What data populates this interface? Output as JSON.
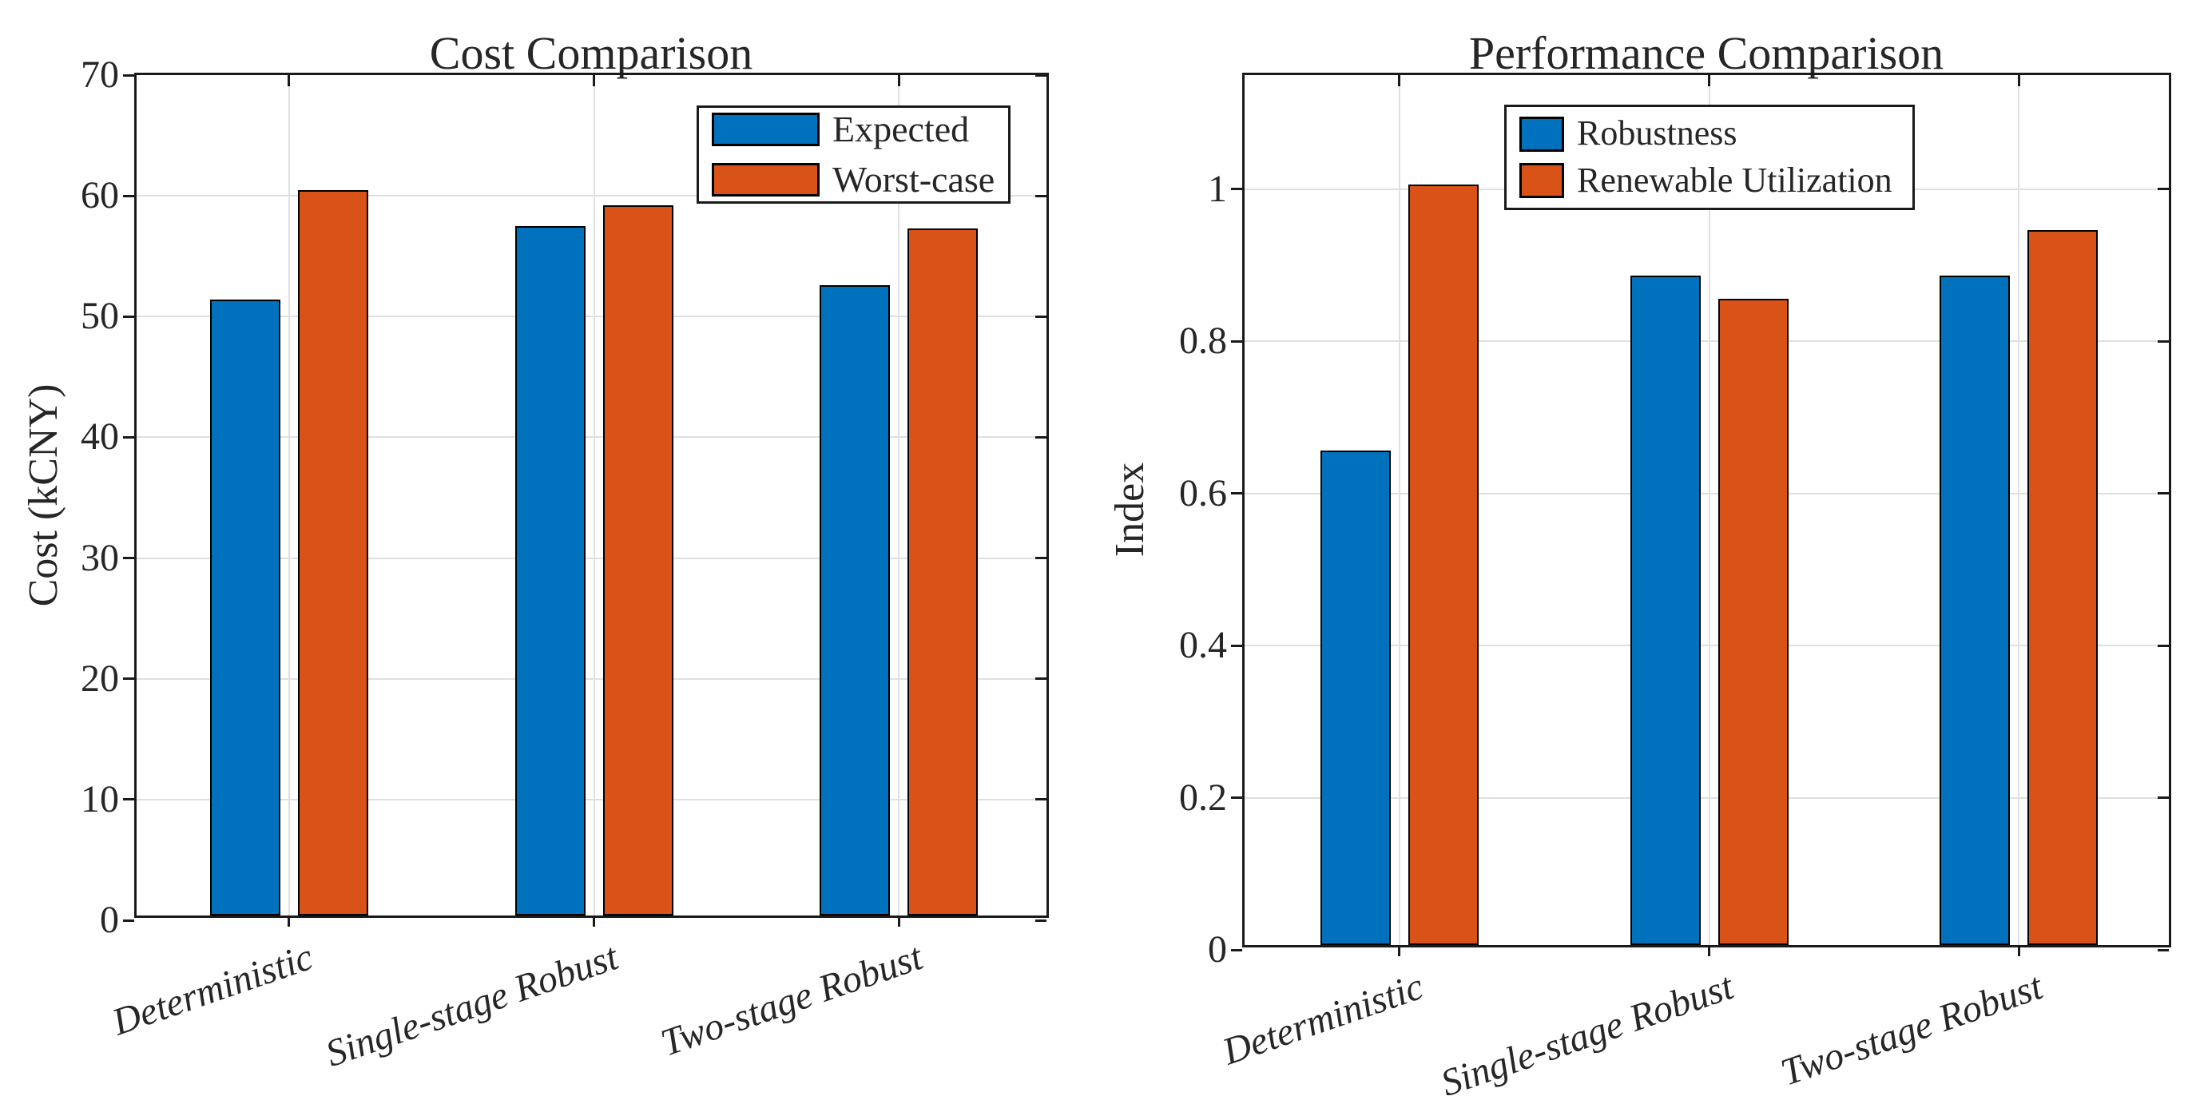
{
  "figure": {
    "background": "#ffffff",
    "axis_color": "#1a1a1a",
    "grid_color": "#e0e0e0",
    "text_color": "#262626",
    "bar_edge_color": "#000000",
    "series_blue": "#0072BD",
    "series_orange": "#D95319"
  },
  "chart_data": [
    {
      "type": "bar",
      "title": "Cost Comparison",
      "xlabel": "",
      "ylabel": "Cost (kCNY)",
      "categories": [
        "Deterministic",
        "Single-stage Robust",
        "Two-stage Robust"
      ],
      "series": [
        {
          "name": "Expected",
          "color": "#0072BD",
          "values": [
            51.0,
            57.1,
            52.2
          ]
        },
        {
          "name": "Worst-case",
          "color": "#D95319",
          "values": [
            60.1,
            58.8,
            56.9
          ]
        }
      ],
      "ylim": [
        0,
        70
      ],
      "yticks": [
        0,
        10,
        20,
        30,
        40,
        50,
        60,
        70
      ],
      "ytick_labels": [
        "0",
        "10",
        "20",
        "30",
        "40",
        "50",
        "60",
        "70"
      ],
      "grid": true,
      "legend_position": "upper-right-inside",
      "xtick_angle_deg": -19
    },
    {
      "type": "bar",
      "title": "Performance Comparison",
      "xlabel": "",
      "ylabel": "Index",
      "categories": [
        "Deterministic",
        "Single-stage Robust",
        "Two-stage Robust"
      ],
      "series": [
        {
          "name": "Robustness",
          "color": "#0072BD",
          "values": [
            0.65,
            0.88,
            0.88
          ]
        },
        {
          "name": "Renewable Utilization",
          "color": "#D95319",
          "values": [
            1.0,
            0.85,
            0.94
          ]
        }
      ],
      "ylim": [
        0,
        1.15
      ],
      "yticks": [
        0,
        0.2,
        0.4,
        0.6,
        0.8,
        1
      ],
      "ytick_labels": [
        "0",
        "0.2",
        "0.4",
        "0.6",
        "0.8",
        "1"
      ],
      "grid": true,
      "legend_position": "upper-center-inside",
      "xtick_angle_deg": -19
    }
  ]
}
